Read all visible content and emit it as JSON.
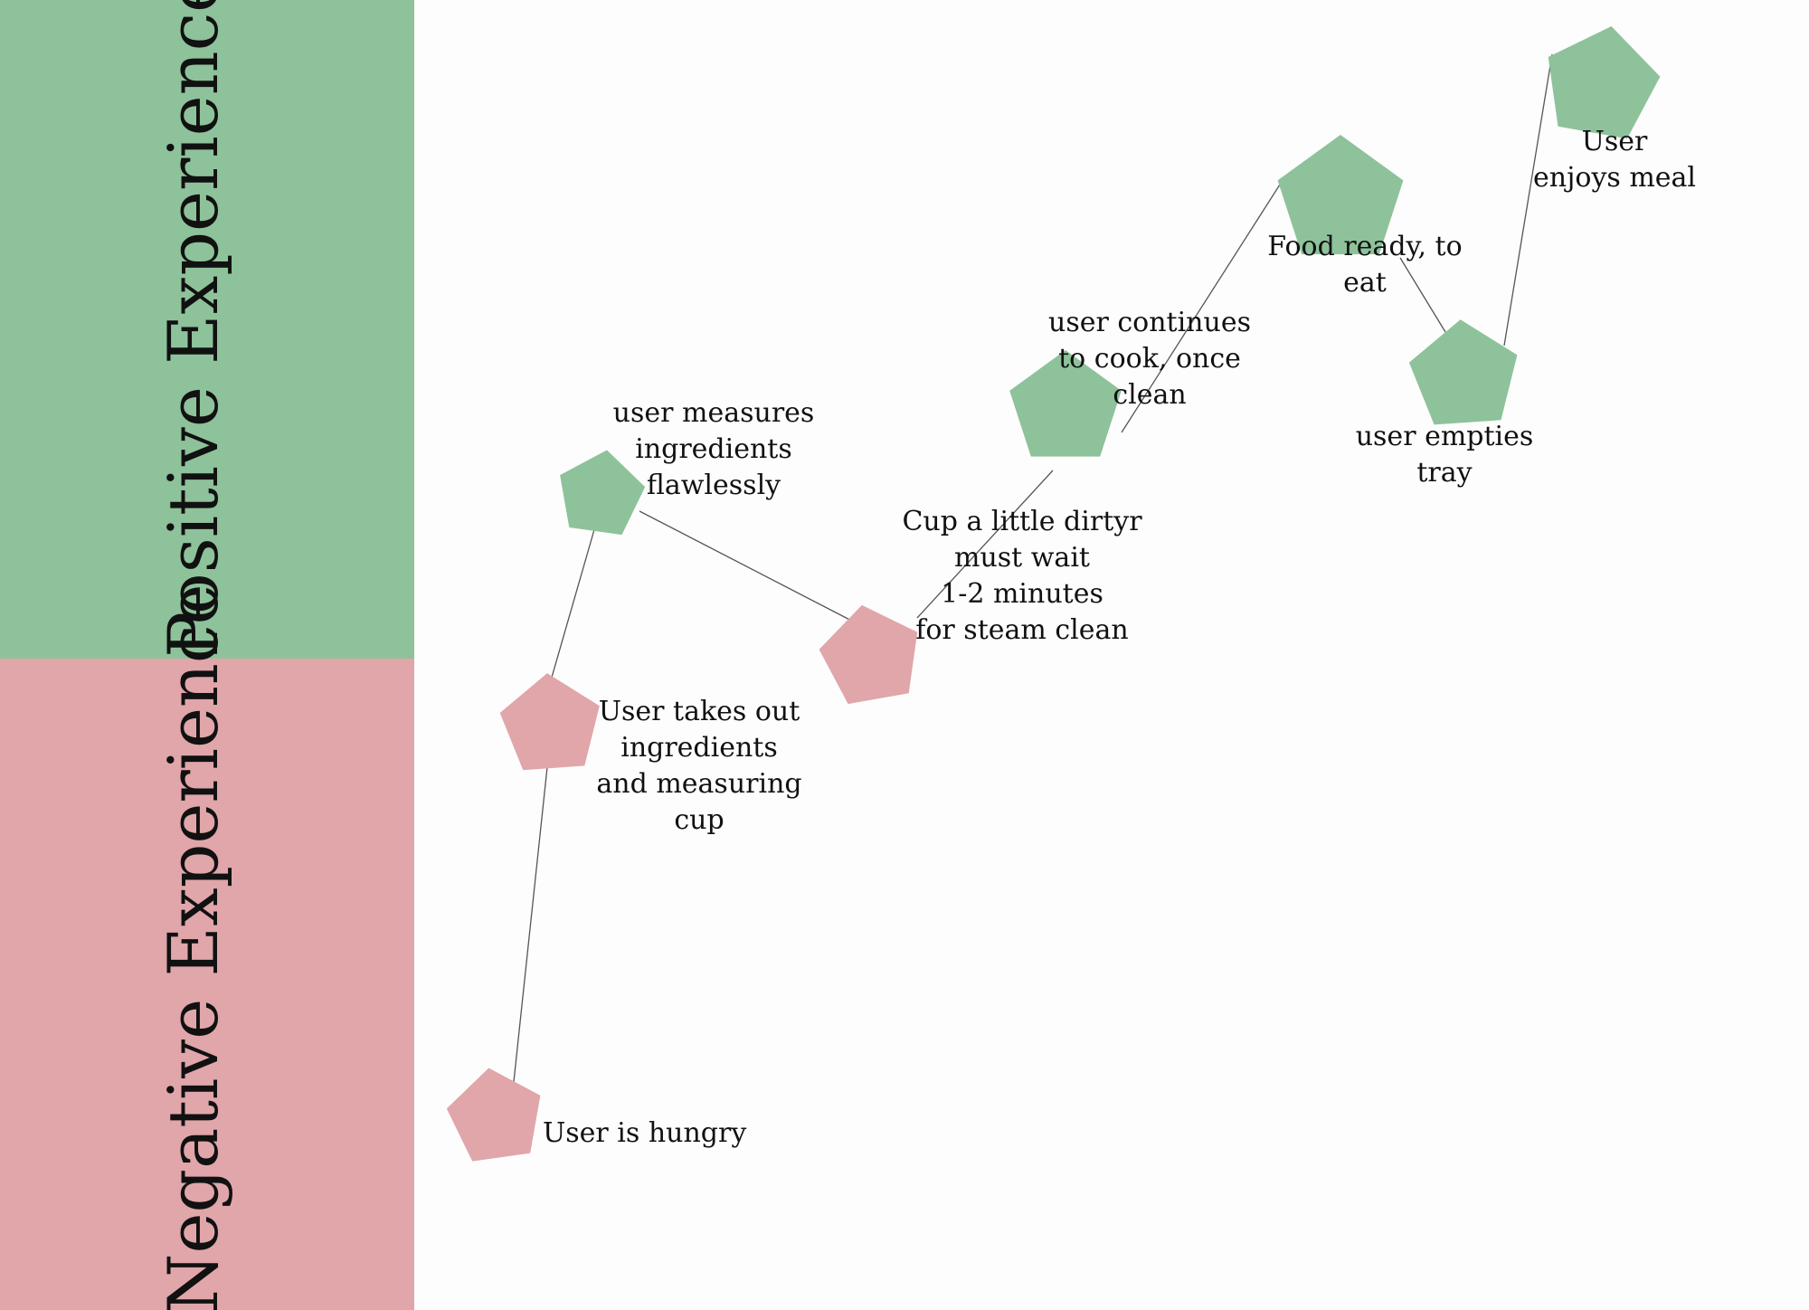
{
  "colors": {
    "positive": "#8ec29a",
    "negative": "#e0a6aa",
    "text": "#111111",
    "line": "#555555"
  },
  "bands": {
    "positive_label": "Positive Experience",
    "negative_label": "Negative Experience"
  },
  "steps": [
    {
      "id": "hungry",
      "sentiment": "negative",
      "label": [
        "User is hungry"
      ]
    },
    {
      "id": "takes-out",
      "sentiment": "negative",
      "label": [
        "User takes out",
        "ingredients",
        "and measuring",
        "cup"
      ]
    },
    {
      "id": "measures",
      "sentiment": "positive",
      "label": [
        "user measures",
        "ingredients",
        "flawlessly"
      ]
    },
    {
      "id": "cup-dirty",
      "sentiment": "negative",
      "label": [
        "Cup a little dirtyr",
        "must wait",
        "1-2 minutes",
        "for steam clean"
      ]
    },
    {
      "id": "continues",
      "sentiment": "positive",
      "label": [
        "user continues",
        "to cook, once",
        "clean"
      ]
    },
    {
      "id": "food-ready",
      "sentiment": "positive",
      "label": [
        "Food ready, to",
        "eat"
      ]
    },
    {
      "id": "empties",
      "sentiment": "positive",
      "label": [
        "user empties",
        "tray"
      ]
    },
    {
      "id": "enjoys",
      "sentiment": "positive",
      "label": [
        "User",
        "enjoys meal"
      ]
    }
  ]
}
